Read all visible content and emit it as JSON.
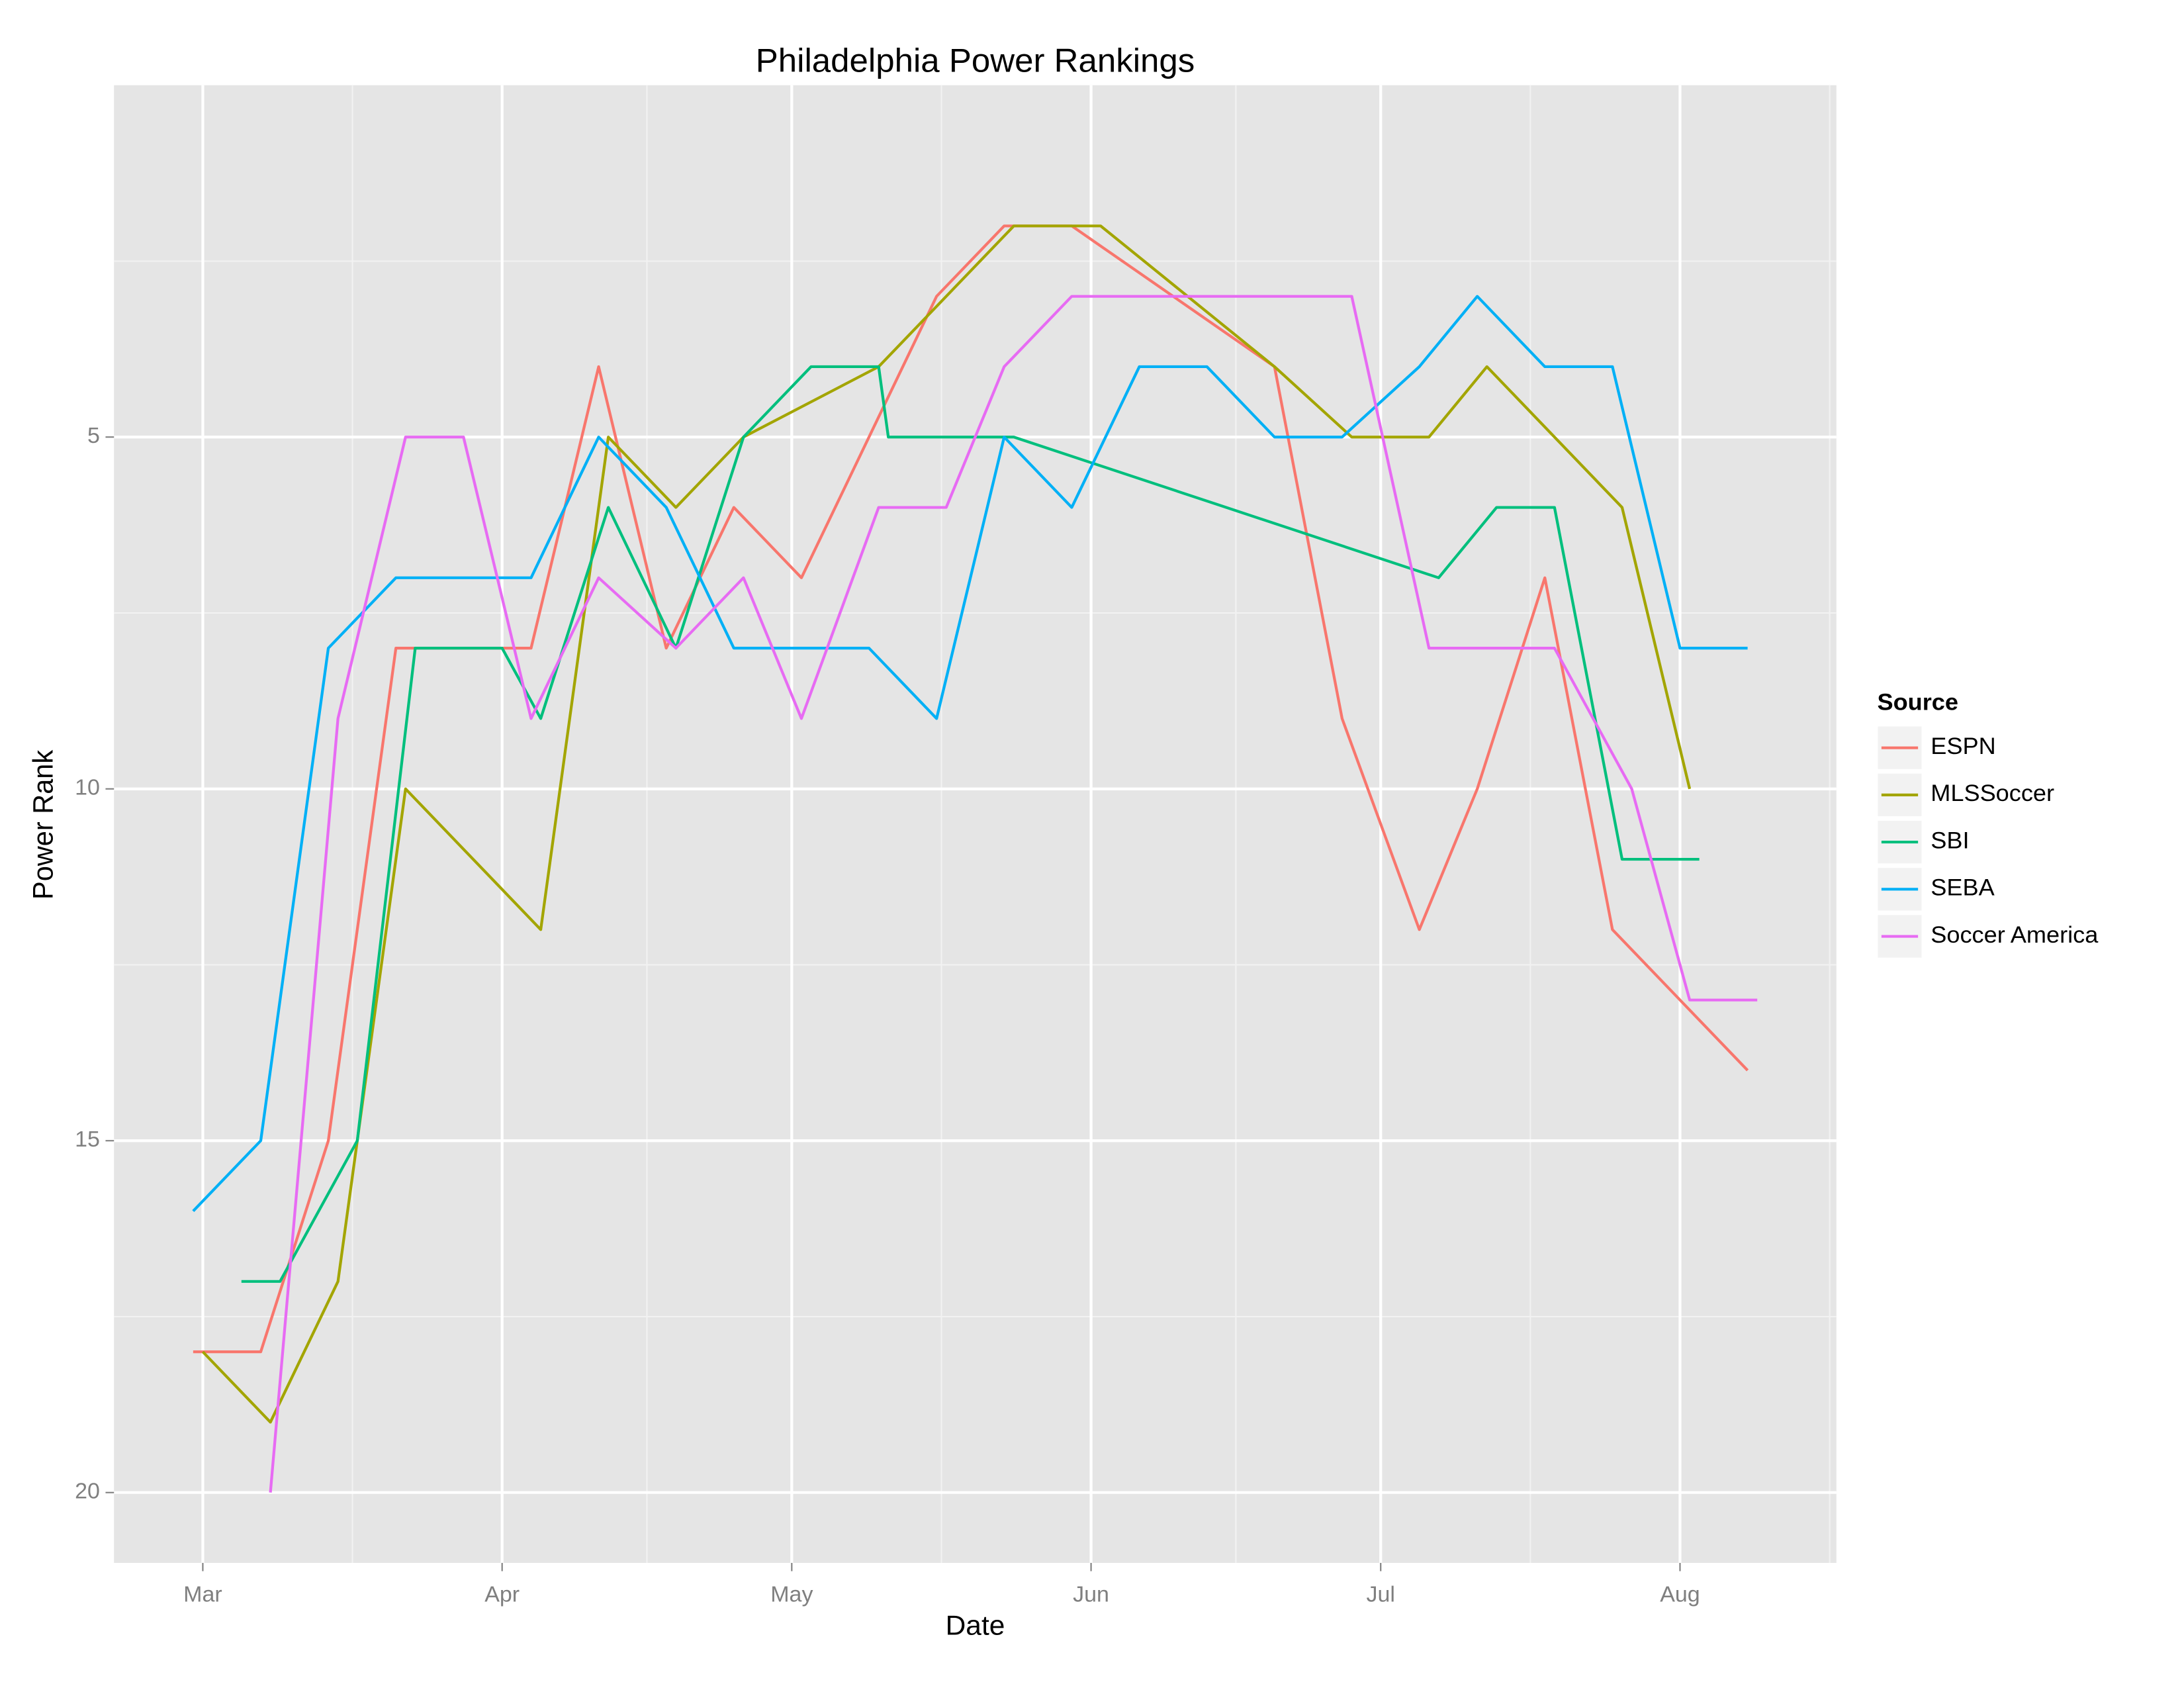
{
  "chart_data": {
    "type": "line",
    "title": "Philadelphia Power Rankings",
    "x_label": "Date",
    "y_label": "Power Rank",
    "legend_title": "Source",
    "legend_position": "right",
    "grid": true,
    "xlim": [
      -9.2,
      169.2
    ],
    "xticks": [
      {
        "value": 0,
        "label": "Mar"
      },
      {
        "value": 31,
        "label": "Apr"
      },
      {
        "value": 61,
        "label": "May"
      },
      {
        "value": 92,
        "label": "Jun"
      },
      {
        "value": 122,
        "label": "Jul"
      },
      {
        "value": 153,
        "label": "Aug"
      }
    ],
    "ylim": [
      21,
      0
    ],
    "yticks": [
      5,
      10,
      15,
      20
    ],
    "series": [
      {
        "name": "ESPN",
        "color": "#F8766D",
        "x": [
          -1,
          6,
          13,
          20,
          34,
          41,
          48,
          55,
          62,
          76,
          83,
          90,
          111,
          118,
          126,
          132,
          139,
          146,
          160
        ],
        "values": [
          18,
          18,
          15,
          8,
          8,
          4,
          8,
          6,
          7,
          3,
          2,
          2,
          4,
          9,
          12,
          10,
          7,
          12,
          14
        ]
      },
      {
        "name": "MLSSoccer",
        "color": "#A3A500",
        "x": [
          0,
          7,
          14,
          21,
          35,
          42,
          49,
          56,
          70,
          84,
          93,
          111,
          119,
          127,
          133,
          147,
          154
        ],
        "values": [
          18,
          19,
          17,
          10,
          12,
          5,
          6,
          5,
          4,
          2,
          2,
          4,
          5,
          5,
          4,
          6,
          10
        ]
      },
      {
        "name": "SBI",
        "color": "#00BF7D",
        "x": [
          4,
          8,
          16,
          22,
          31,
          35,
          42,
          49,
          56,
          63,
          70,
          71,
          84,
          128,
          134,
          140,
          147,
          155
        ],
        "values": [
          17,
          17,
          15,
          8,
          8,
          9,
          6,
          8,
          5,
          4,
          4,
          5,
          5,
          7,
          6,
          6,
          11,
          11
        ]
      },
      {
        "name": "SEBA",
        "color": "#00B0F6",
        "x": [
          -1,
          6,
          13,
          20,
          34,
          41,
          48,
          55,
          69,
          76,
          83,
          90,
          97,
          104,
          111,
          118,
          126,
          132,
          139,
          146,
          153,
          160
        ],
        "values": [
          16,
          15,
          8,
          7,
          7,
          5,
          6,
          8,
          8,
          9,
          5,
          6,
          4,
          4,
          5,
          5,
          4,
          3,
          4,
          4,
          8,
          8
        ]
      },
      {
        "name": "Soccer America",
        "color": "#E76BF3",
        "x": [
          7,
          14,
          21,
          27,
          34,
          41,
          49,
          56,
          62,
          70,
          77,
          83,
          90,
          119,
          127,
          140,
          148,
          154,
          161
        ],
        "values": [
          20,
          9,
          5,
          5,
          9,
          7,
          8,
          7,
          9,
          6,
          6,
          4,
          3,
          3,
          8,
          8,
          10,
          13,
          13
        ]
      }
    ]
  }
}
